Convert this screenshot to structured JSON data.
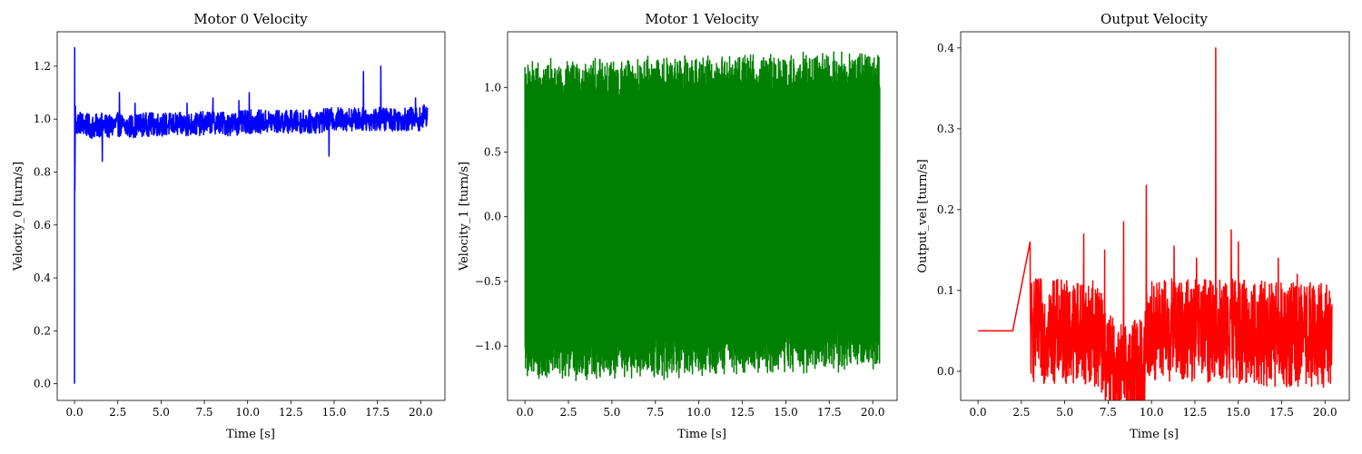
{
  "figure": {
    "background": "#ffffff"
  },
  "chart_data": [
    {
      "type": "line",
      "title": "Motor 0 Velocity",
      "xlabel": "Time [s]",
      "ylabel": "Velocity_0 [turn/s]",
      "xlim": [
        -1.0,
        21.4
      ],
      "ylim": [
        -0.063,
        1.33
      ],
      "xticks": [
        0.0,
        2.5,
        5.0,
        7.5,
        10.0,
        12.5,
        15.0,
        17.5,
        20.0
      ],
      "xtick_labels": [
        "0.0",
        "2.5",
        "5.0",
        "7.5",
        "10.0",
        "12.5",
        "15.0",
        "17.5",
        "20.0"
      ],
      "yticks": [
        0.0,
        0.2,
        0.4,
        0.6,
        0.8,
        1.0,
        1.2
      ],
      "ytick_labels": [
        "0.0",
        "0.2",
        "0.4",
        "0.6",
        "0.8",
        "1.0",
        "1.2"
      ],
      "grid": false,
      "series": [
        {
          "color": "#0000ff",
          "x": [
            0.0,
            0.01,
            0.02,
            0.05,
            0.1,
            0.2,
            1.0,
            1.6,
            2.0,
            2.5,
            3.0,
            4.0,
            5.0,
            6.0,
            7.0,
            8.0,
            9.0,
            10.0,
            11.0,
            12.0,
            13.0,
            14.0,
            15.0,
            16.0,
            17.0,
            18.0,
            19.0,
            20.0,
            20.4
          ],
          "y": [
            0.0,
            1.27,
            0.73,
            1.03,
            0.96,
            0.99,
            0.97,
            0.98,
            0.97,
            0.98,
            0.97,
            0.98,
            0.98,
            0.98,
            0.98,
            0.99,
            0.98,
            0.99,
            0.99,
            0.99,
            0.99,
            0.99,
            1.0,
            1.0,
            1.0,
            1.0,
            1.0,
            1.0,
            1.02
          ],
          "noise": 0.045,
          "spikes": [
            [
              1.6,
              0.84
            ],
            [
              2.6,
              0.8
            ],
            [
              2.6,
              1.1
            ],
            [
              3.5,
              1.06
            ],
            [
              6.5,
              1.06
            ],
            [
              8.0,
              1.08
            ],
            [
              9.5,
              1.07
            ],
            [
              10.1,
              1.1
            ],
            [
              14.7,
              0.86
            ],
            [
              16.7,
              1.18
            ],
            [
              17.7,
              1.2
            ],
            [
              19.7,
              1.08
            ]
          ]
        }
      ]
    },
    {
      "type": "line",
      "title": "Motor 1 Velocity",
      "xlabel": "Time [s]",
      "ylabel": "Velocity_1 [turn/s]",
      "xlim": [
        -1.0,
        21.4
      ],
      "ylim": [
        -1.42,
        1.43
      ],
      "xticks": [
        0.0,
        2.5,
        5.0,
        7.5,
        10.0,
        12.5,
        15.0,
        17.5,
        20.0
      ],
      "xtick_labels": [
        "0.0",
        "2.5",
        "5.0",
        "7.5",
        "10.0",
        "12.5",
        "15.0",
        "17.5",
        "20.0"
      ],
      "yticks": [
        -1.0,
        -0.5,
        0.0,
        0.5,
        1.0
      ],
      "ytick_labels": [
        "−1.0",
        "−0.5",
        "0.0",
        "0.5",
        "1.0"
      ],
      "grid": false,
      "series": [
        {
          "color": "#008000",
          "x": [
            0.0,
            20.4
          ],
          "upper": [
            1.15,
            1.3
          ],
          "lower": [
            -1.3,
            -1.12
          ],
          "noise": 0.1
        }
      ]
    },
    {
      "type": "line",
      "title": "Output Velocity",
      "xlabel": "Time [s]",
      "ylabel": "Output_vel [turn/s]",
      "xlim": [
        -1.0,
        21.4
      ],
      "ylim": [
        -0.036,
        0.42
      ],
      "xticks": [
        0.0,
        2.5,
        5.0,
        7.5,
        10.0,
        12.5,
        15.0,
        17.5,
        20.0
      ],
      "xtick_labels": [
        "0.0",
        "2.5",
        "5.0",
        "7.5",
        "10.0",
        "12.5",
        "15.0",
        "17.5",
        "20.0"
      ],
      "yticks": [
        0.0,
        0.1,
        0.2,
        0.3,
        0.4
      ],
      "ytick_labels": [
        "0.0",
        "0.1",
        "0.2",
        "0.3",
        "0.4"
      ],
      "grid": false,
      "series": [
        {
          "color": "#ff0000",
          "x": [
            0.0,
            1.0,
            2.0,
            3.0,
            4.0,
            5.0,
            6.0,
            7.0,
            7.5,
            8.0,
            9.0,
            9.6,
            9.7,
            10.0,
            11.0,
            12.0,
            13.0,
            14.0,
            15.0,
            16.0,
            17.0,
            18.0,
            19.0,
            20.0,
            20.4
          ],
          "y": [
            0.05,
            0.05,
            0.05,
            0.05,
            0.05,
            0.05,
            0.05,
            0.045,
            0.005,
            0.0,
            0.0,
            0.0,
            0.05,
            0.05,
            0.05,
            0.05,
            0.05,
            0.05,
            0.05,
            0.05,
            0.045,
            0.045,
            0.045,
            0.045,
            0.05
          ],
          "noise": 0.065,
          "spikes": [
            [
              2.0,
              0.2
            ],
            [
              2.2,
              0.16
            ],
            [
              6.1,
              0.17
            ],
            [
              7.3,
              0.15
            ],
            [
              8.4,
              0.185
            ],
            [
              9.7,
              0.23
            ],
            [
              11.3,
              0.155
            ],
            [
              12.6,
              0.14
            ],
            [
              13.7,
              0.4
            ],
            [
              14.6,
              0.175
            ],
            [
              15.0,
              0.16
            ],
            [
              17.3,
              0.14
            ],
            [
              18.4,
              0.12
            ]
          ]
        }
      ]
    }
  ]
}
